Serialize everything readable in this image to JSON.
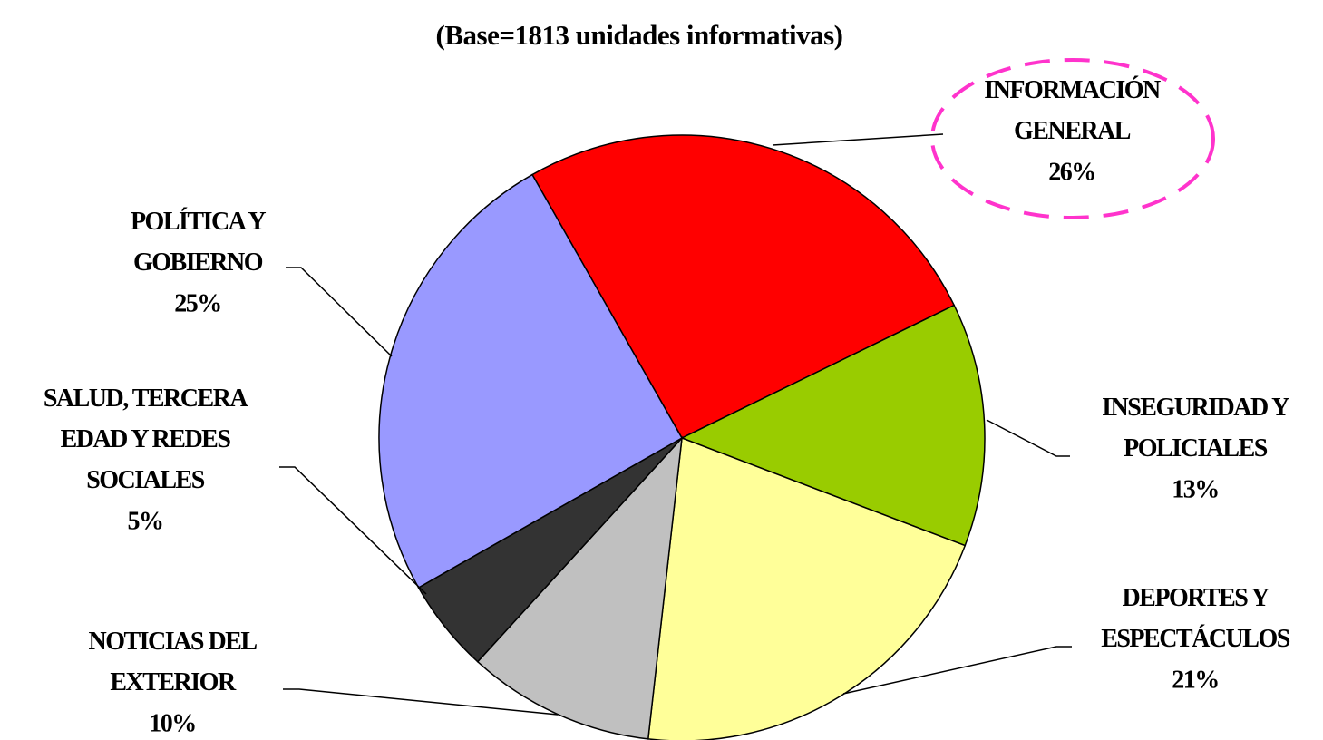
{
  "chart_data": {
    "type": "pie",
    "subtitle": "(Base=1813 unidades informativas)",
    "categories": [
      "INFORMACIÓN GENERAL",
      "INSEGURIDAD Y POLICIALES",
      "DEPORTES Y ESPECTÁCULOS",
      "NOTICIAS DEL EXTERIOR",
      "SALUD, TERCERA EDAD Y REDES SOCIALES",
      "POLÍTICA Y GOBIERNO"
    ],
    "values": [
      26,
      13,
      21,
      10,
      5,
      25
    ],
    "value_labels": [
      "26%",
      "13%",
      "21%",
      "10%",
      "5%",
      "25%"
    ],
    "colors": [
      "#ff0000",
      "#99cc00",
      "#ffff99",
      "#c0c0c0",
      "#333333",
      "#9999ff"
    ]
  }
}
